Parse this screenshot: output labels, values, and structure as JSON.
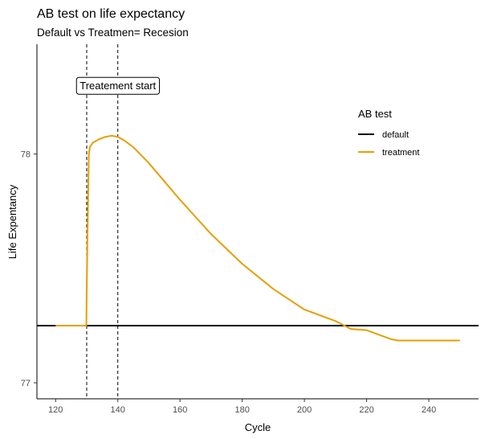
{
  "chart_data": {
    "type": "line",
    "title": "AB test on life expectancy",
    "subtitle": "Default vs Treatmen= Recesion",
    "xlabel": "Cycle",
    "ylabel": "Life Expentancy",
    "xlim": [
      114,
      256
    ],
    "ylim": [
      76.93,
      78.48
    ],
    "x_ticks": [
      120,
      140,
      160,
      180,
      200,
      220,
      240
    ],
    "y_ticks": [
      77,
      78
    ],
    "grid": false,
    "legend": {
      "title": "AB test",
      "placement": "right",
      "entries": [
        {
          "label": "default",
          "color": "#000000"
        },
        {
          "label": "treatment",
          "color": "#E69F00"
        }
      ]
    },
    "vlines": [
      130,
      140
    ],
    "annotation": {
      "text": "Treatement start",
      "x": 140,
      "y": 78.3
    },
    "series": [
      {
        "name": "default",
        "color": "#000000",
        "x": [
          114,
          256
        ],
        "y": [
          77.25,
          77.25
        ]
      },
      {
        "name": "treatment",
        "color": "#E69F00",
        "x": [
          120,
          125,
          129.9,
          130,
          130.2,
          130.5,
          130.7,
          131,
          132,
          134,
          136,
          138,
          140,
          142,
          145,
          150,
          155,
          160,
          170,
          180,
          190,
          200,
          210,
          215,
          220,
          225,
          228,
          230,
          235,
          240,
          250
        ],
        "y": [
          77.25,
          77.25,
          77.25,
          77.4,
          77.6,
          77.85,
          78.0,
          78.03,
          78.05,
          78.065,
          78.075,
          78.08,
          78.075,
          78.06,
          78.03,
          77.96,
          77.88,
          77.8,
          77.65,
          77.52,
          77.41,
          77.32,
          77.27,
          77.235,
          77.23,
          77.205,
          77.19,
          77.185,
          77.185,
          77.185,
          77.185
        ]
      }
    ]
  }
}
